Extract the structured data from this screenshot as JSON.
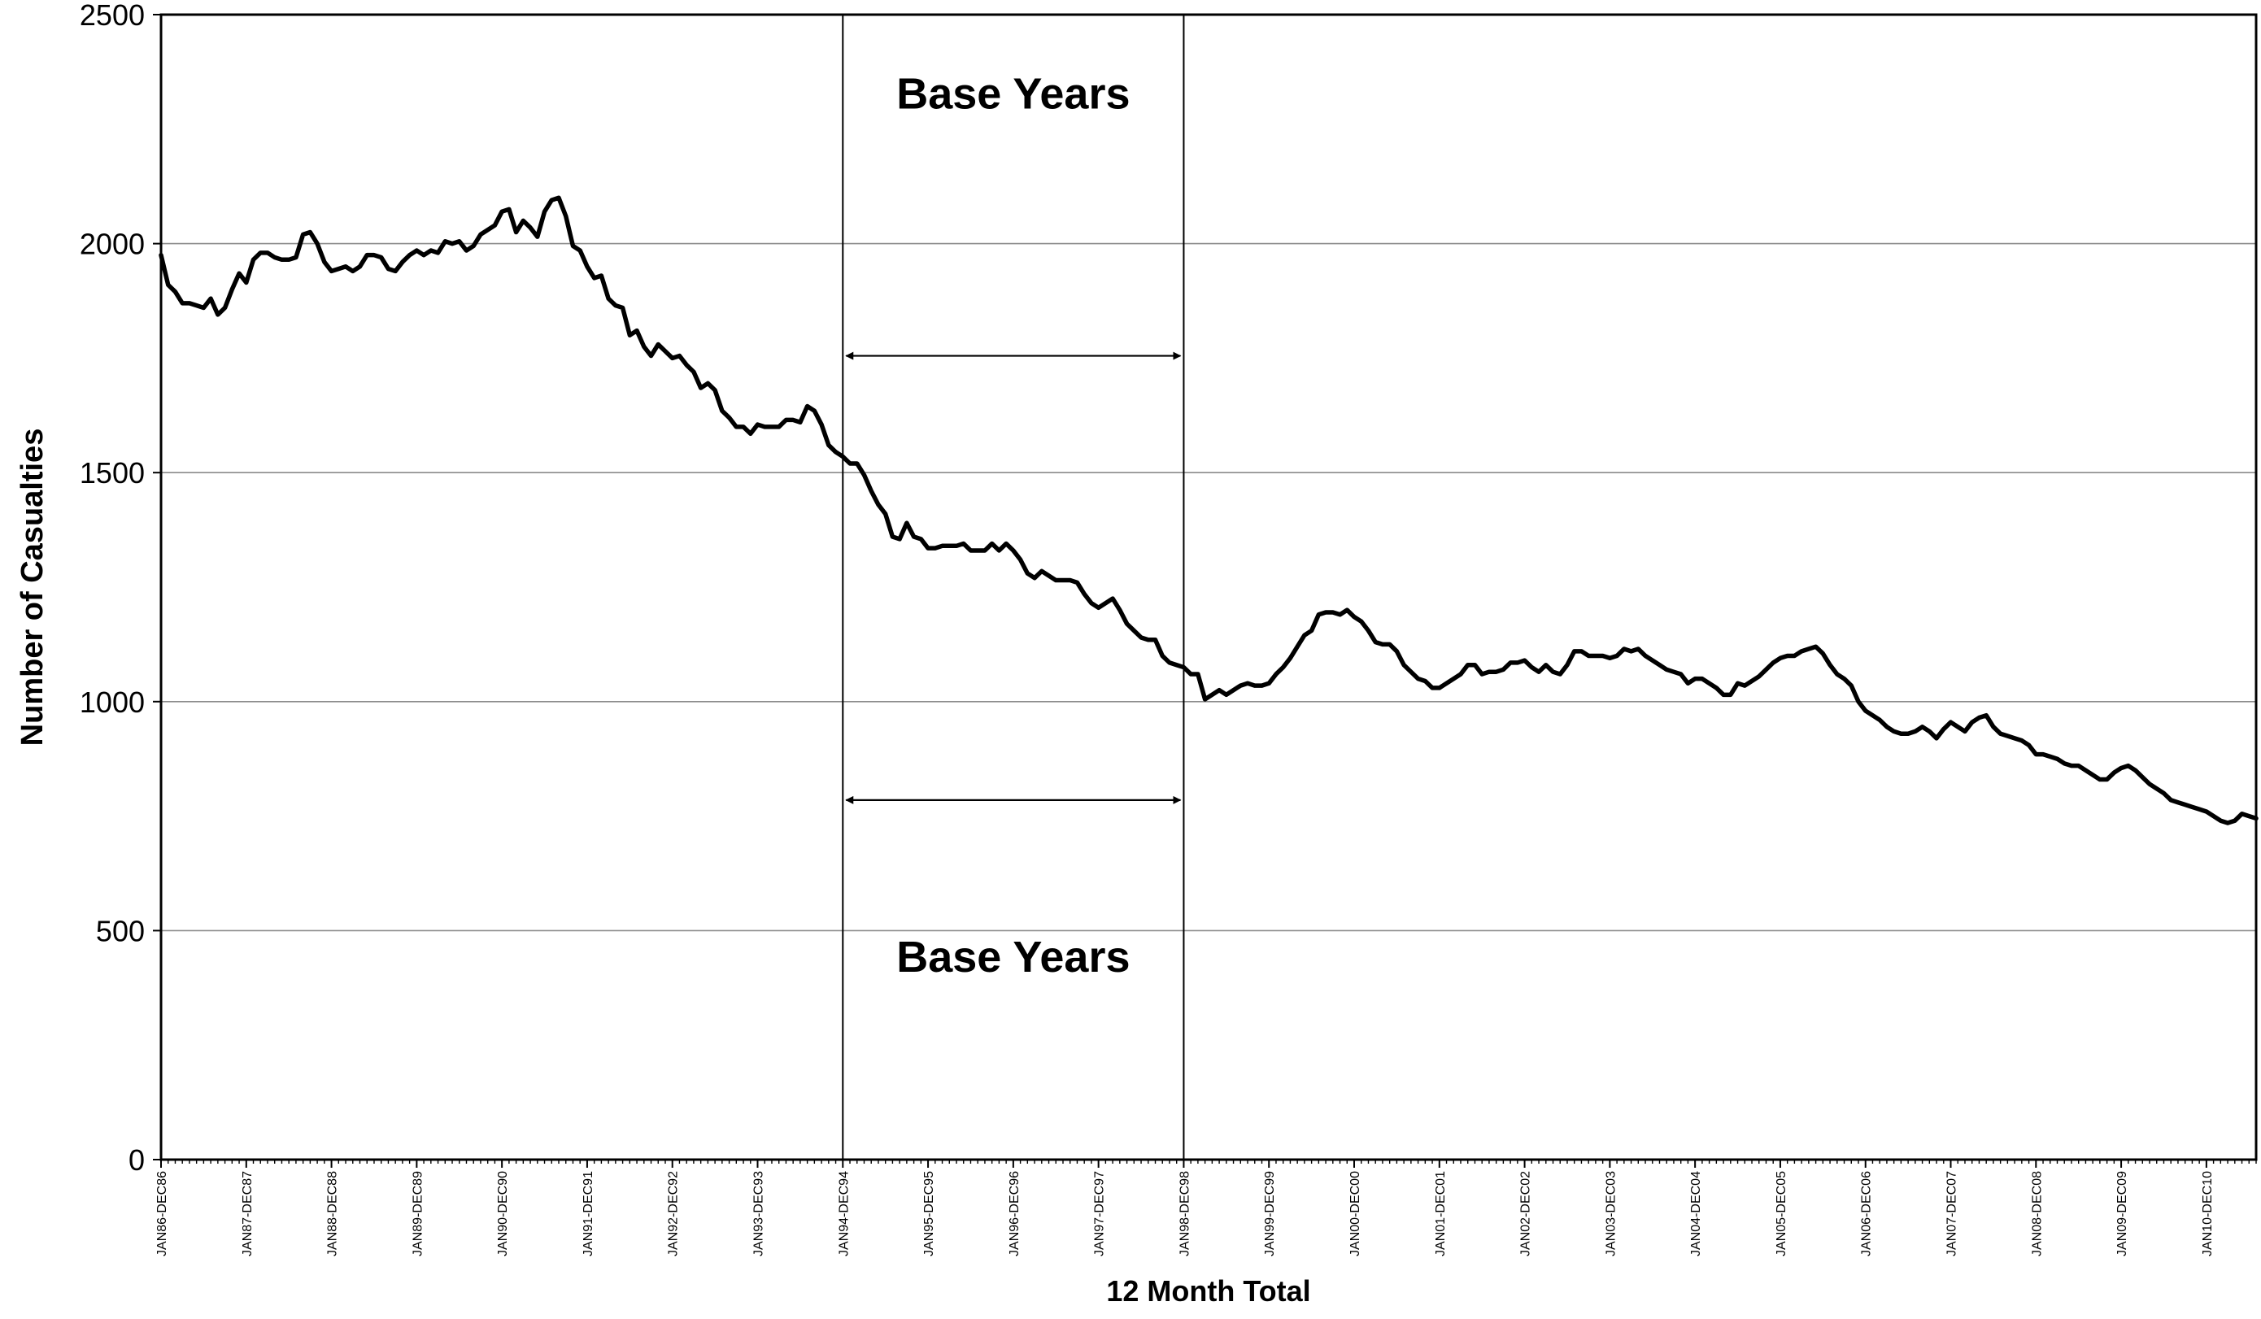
{
  "chart_data": {
    "type": "line",
    "title": "",
    "xlabel": "12 Month Total",
    "ylabel": "Number of Casualties",
    "ylim": [
      0,
      2500
    ],
    "yticks": [
      0,
      500,
      1000,
      1500,
      2000,
      2500
    ],
    "grid": true,
    "legend": "none",
    "line_color": "#000000",
    "x_tick_labels": [
      "JAN86-DEC86",
      "JAN87-DEC87",
      "JAN88-DEC88",
      "JAN89-DEC89",
      "JAN90-DEC90",
      "JAN91-DEC91",
      "JAN92-DEC92",
      "JAN93-DEC93",
      "JAN94-DEC94",
      "JAN95-DEC95",
      "JAN96-DEC96",
      "JAN97-DEC97",
      "JAN98-DEC98",
      "JAN99-DEC99",
      "JAN00-DEC00",
      "JAN01-DEC01",
      "JAN02-DEC02",
      "JAN03-DEC03",
      "JAN04-DEC04",
      "JAN05-DEC05",
      "JAN06-DEC06",
      "JAN07-DEC07",
      "JAN08-DEC08",
      "JAN09-DEC09",
      "JAN10-DEC10"
    ],
    "base_period": {
      "start": "JAN94-DEC94",
      "end": "JAN98-DEC98"
    },
    "annotations": [
      {
        "text": "Base Years",
        "anchor": "upper"
      },
      {
        "text": "Base Years",
        "anchor": "lower"
      }
    ],
    "series": [
      {
        "values": [
          1975,
          1910,
          1895,
          1870,
          1870,
          1865,
          1860,
          1880,
          1845,
          1860,
          1900,
          1935,
          1915,
          1965,
          1980,
          1980,
          1970,
          1965,
          1965,
          1970,
          2020,
          2025,
          2000,
          1960,
          1940,
          1945,
          1950,
          1940,
          1950,
          1975,
          1975,
          1970,
          1945,
          1940,
          1960,
          1975,
          1985,
          1975,
          1985,
          1980,
          2005,
          2000,
          2005,
          1985,
          1995,
          2020,
          2030,
          2040,
          2070,
          2075,
          2025,
          2050,
          2035,
          2015,
          2070,
          2095,
          2100,
          2060,
          1995,
          1985,
          1950,
          1925,
          1930,
          1880,
          1865,
          1860,
          1800,
          1810,
          1775,
          1755,
          1780,
          1765,
          1750,
          1755,
          1735,
          1720,
          1685,
          1695,
          1680,
          1635,
          1620,
          1600,
          1600,
          1585,
          1605,
          1600,
          1600,
          1600,
          1615,
          1615,
          1610,
          1645,
          1635,
          1605,
          1560,
          1545,
          1535,
          1520,
          1520,
          1495,
          1460,
          1430,
          1410,
          1360,
          1355,
          1390,
          1360,
          1355,
          1335,
          1335,
          1340,
          1340,
          1340,
          1345,
          1330,
          1330,
          1330,
          1345,
          1330,
          1345,
          1330,
          1310,
          1280,
          1270,
          1285,
          1275,
          1265,
          1265,
          1265,
          1260,
          1235,
          1215,
          1205,
          1215,
          1225,
          1200,
          1170,
          1155,
          1140,
          1135,
          1135,
          1100,
          1085,
          1080,
          1075,
          1060,
          1060,
          1005,
          1015,
          1025,
          1015,
          1025,
          1035,
          1040,
          1035,
          1035,
          1040,
          1060,
          1075,
          1095,
          1120,
          1145,
          1155,
          1190,
          1195,
          1195,
          1190,
          1200,
          1185,
          1175,
          1155,
          1130,
          1125,
          1125,
          1110,
          1080,
          1065,
          1050,
          1045,
          1030,
          1030,
          1040,
          1050,
          1060,
          1080,
          1080,
          1060,
          1065,
          1065,
          1070,
          1085,
          1085,
          1090,
          1075,
          1065,
          1080,
          1065,
          1060,
          1080,
          1110,
          1110,
          1100,
          1100,
          1100,
          1095,
          1100,
          1115,
          1110,
          1115,
          1100,
          1090,
          1080,
          1070,
          1065,
          1060,
          1040,
          1050,
          1050,
          1040,
          1030,
          1015,
          1015,
          1040,
          1035,
          1045,
          1055,
          1070,
          1085,
          1095,
          1100,
          1100,
          1110,
          1115,
          1120,
          1105,
          1080,
          1060,
          1050,
          1035,
          1000,
          980,
          970,
          960,
          945,
          935,
          930,
          930,
          935,
          945,
          935,
          920,
          940,
          955,
          945,
          935,
          955,
          965,
          970,
          945,
          930,
          925,
          920,
          915,
          905,
          885,
          885,
          880,
          875,
          865,
          860,
          860,
          850,
          840,
          830,
          830,
          845,
          855,
          860,
          850,
          835,
          820,
          810,
          800,
          785,
          780,
          775,
          770,
          765,
          760,
          750,
          740,
          735,
          740,
          755,
          750,
          745
        ]
      }
    ]
  }
}
